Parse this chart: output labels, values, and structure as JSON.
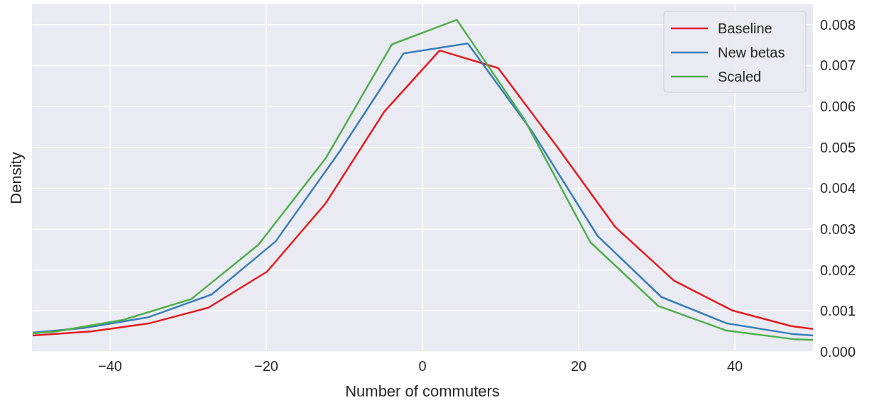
{
  "chart_data": {
    "type": "line",
    "xlabel": "Number of commuters",
    "ylabel": "Density",
    "xlim": [
      -50,
      50
    ],
    "xticks": [
      {
        "value": -40,
        "label": "−40"
      },
      {
        "value": -20,
        "label": "−20"
      },
      0,
      20,
      40
    ],
    "ylim": [
      0,
      0.0085
    ],
    "yticks": [
      {
        "value": 0,
        "label": "0.000"
      },
      {
        "value": 0.001,
        "label": "0.001"
      },
      {
        "value": 0.002,
        "label": "0.002"
      },
      {
        "value": 0.003,
        "label": "0.003"
      },
      {
        "value": 0.004,
        "label": "0.004"
      },
      {
        "value": 0.005,
        "label": "0.005"
      },
      {
        "value": 0.006,
        "label": "0.006"
      },
      {
        "value": 0.007,
        "label": "0.007"
      },
      {
        "value": 0.008,
        "label": "0.008"
      }
    ],
    "grid": true,
    "legend": "top right",
    "line_style": "solid",
    "series": [
      {
        "name": "Baseline",
        "color": "#e41a1c",
        "x": [
          -49.9,
          -42.4,
          -34.9,
          -27.4,
          -19.9,
          -12.4,
          -4.9,
          2.2,
          9.7,
          17.3,
          24.7,
          32.2,
          39.7,
          47.2,
          50
        ],
        "values": [
          0.0004,
          0.0005,
          0.0007,
          0.00108,
          0.00196,
          0.00363,
          0.00587,
          0.00737,
          0.00694,
          0.005,
          0.00305,
          0.00174,
          0.00101,
          0.00063,
          0.00056
        ]
      },
      {
        "name": "New betas",
        "color": "#377eb8",
        "x": [
          -49.9,
          -43.4,
          -35.2,
          -27.0,
          -18.8,
          -10.6,
          -2.4,
          5.8,
          14.0,
          22.4,
          30.6,
          38.9,
          47.2,
          50
        ],
        "values": [
          0.00047,
          0.00058,
          0.00084,
          0.0014,
          0.0027,
          0.0049,
          0.0073,
          0.00754,
          0.0054,
          0.00284,
          0.00134,
          0.0007,
          0.00044,
          0.0004
        ]
      },
      {
        "name": "Scaled",
        "color": "#4daf4a",
        "x": [
          -49.9,
          -46.9,
          -38.3,
          -29.6,
          -21.0,
          -12.4,
          -3.9,
          4.4,
          13.0,
          21.5,
          30.2,
          38.9,
          47.5,
          50
        ],
        "values": [
          0.00045,
          0.0005,
          0.00078,
          0.00129,
          0.00262,
          0.00473,
          0.00752,
          0.00812,
          0.0057,
          0.00268,
          0.00112,
          0.00052,
          0.00031,
          0.00029
        ]
      }
    ]
  }
}
